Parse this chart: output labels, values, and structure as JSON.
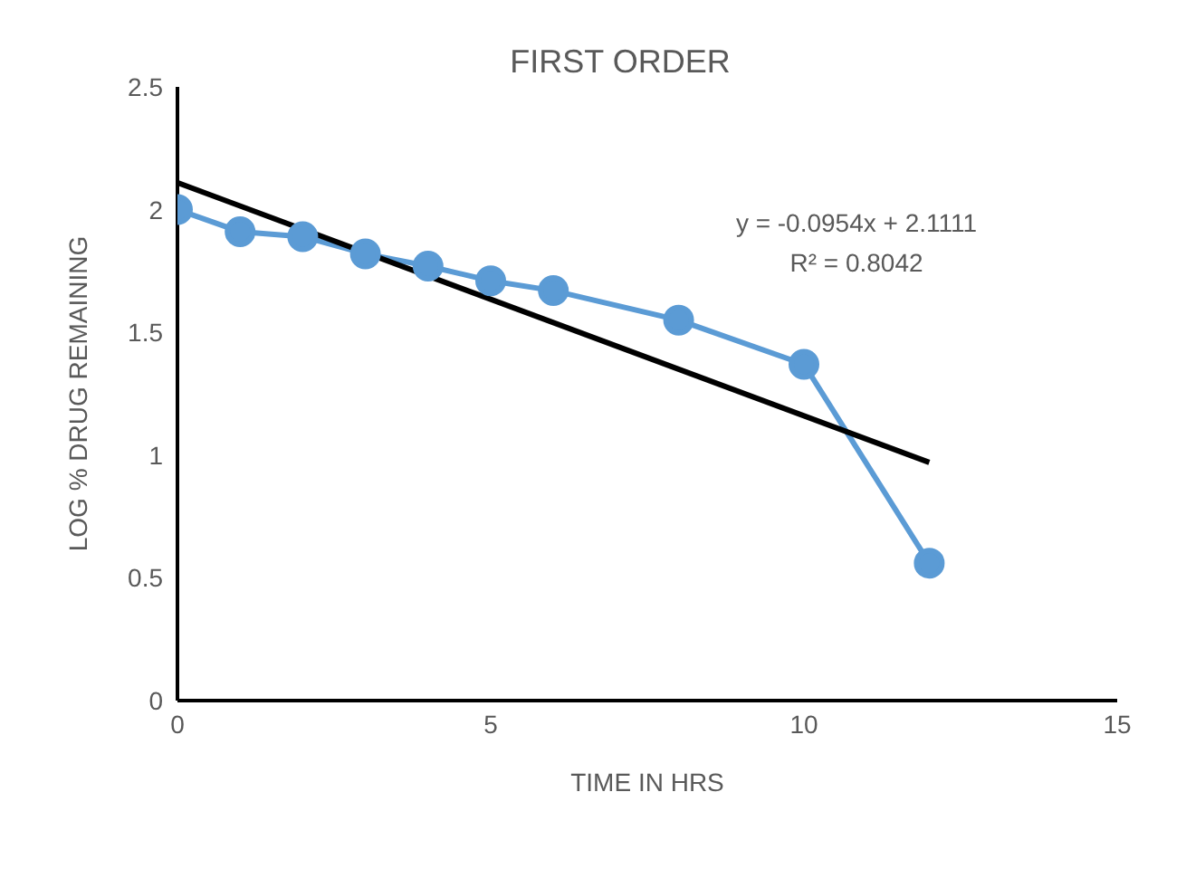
{
  "chart_data": {
    "type": "line",
    "title": "FIRST ORDER",
    "xlabel": "TIME IN HRS",
    "ylabel": "LOG % DRUG REMAINING",
    "x": [
      0,
      1,
      2,
      3,
      4,
      5,
      6,
      8,
      10,
      12
    ],
    "series": [
      {
        "color": "#5b9bd5",
        "values": [
          2.0,
          1.91,
          1.89,
          1.82,
          1.77,
          1.71,
          1.67,
          1.55,
          1.37,
          0.56
        ],
        "marker": "circle"
      },
      {
        "type": "line",
        "color": "#000000",
        "x": [
          0,
          12
        ],
        "values": [
          2.11,
          0.97
        ],
        "marker": "none"
      }
    ],
    "annotations": [
      "y = -0.0954x + 2.1111",
      "R² = 0.8042"
    ],
    "xlim": [
      0,
      15
    ],
    "xticks": [
      0,
      5,
      10,
      15
    ],
    "ylim": [
      0,
      2.5
    ],
    "yticks": [
      0,
      0.5,
      1,
      1.5,
      2,
      2.5
    ]
  }
}
